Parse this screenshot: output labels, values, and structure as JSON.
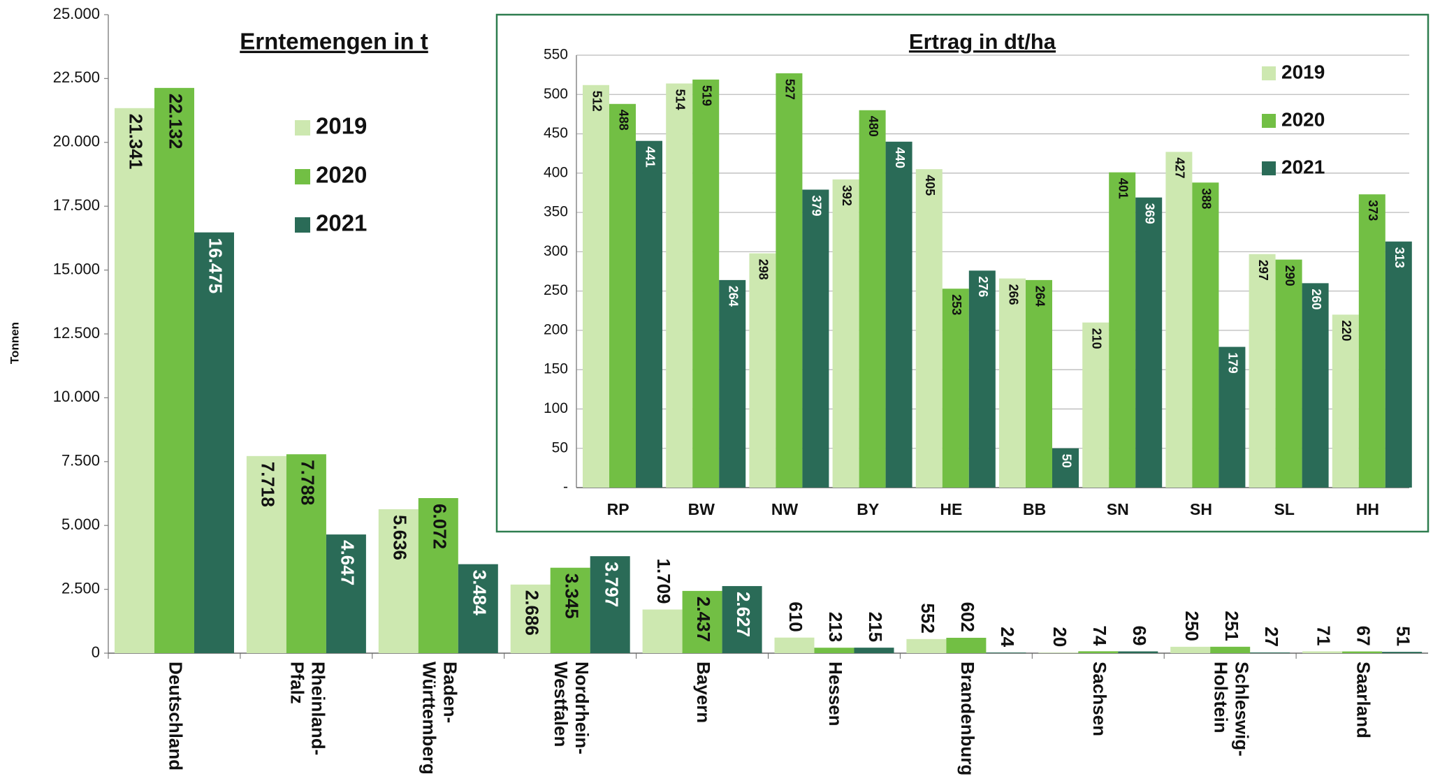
{
  "chart_data": [
    {
      "type": "bar",
      "title": "Erntemengen in t",
      "y_label": "Tonnen",
      "categories": [
        "Deutschland",
        "Rheinland-Pfalz",
        "Baden-Württemberg",
        "Nordrhein-Westfalen",
        "Bayern",
        "Hessen",
        "Brandenburg",
        "Sachsen",
        "Schleswig-Holstein",
        "Saarland"
      ],
      "series": [
        {
          "name": "2019",
          "color": "#cde8b0",
          "values": [
            21341,
            7718,
            5636,
            2686,
            1709,
            610,
            552,
            20,
            250,
            71
          ],
          "value_labels": [
            "21.341",
            "7.718",
            "5.636",
            "2.686",
            "1.709",
            "610",
            "552",
            "20",
            "250",
            "71"
          ]
        },
        {
          "name": "2020",
          "color": "#72bf44",
          "values": [
            22132,
            7788,
            6072,
            3345,
            2437,
            213,
            602,
            74,
            251,
            67
          ],
          "value_labels": [
            "22.132",
            "7.788",
            "6.072",
            "3.345",
            "2.437",
            "213",
            "602",
            "74",
            "251",
            "67"
          ]
        },
        {
          "name": "2021",
          "color": "#2a6b57",
          "values": [
            16475,
            4647,
            3484,
            3797,
            2627,
            215,
            24,
            69,
            27,
            51
          ],
          "value_labels": [
            "16.475",
            "4.647",
            "3.484",
            "3.797",
            "2.627",
            "215",
            "24",
            "69",
            "27",
            "51"
          ]
        }
      ],
      "ylim": [
        0,
        25000
      ],
      "yticks": [
        0,
        {
          "value": 2500,
          "label": "2.500"
        },
        {
          "value": 5000,
          "label": "5.000"
        },
        {
          "value": 7500,
          "label": "7.500"
        },
        {
          "value": 10000,
          "label": "10.000"
        },
        {
          "value": 12500,
          "label": "12.500"
        },
        {
          "value": 15000,
          "label": "15.000"
        },
        {
          "value": 17500,
          "label": "17.500"
        },
        {
          "value": 20000,
          "label": "20.000"
        },
        {
          "value": 22500,
          "label": "22.500"
        },
        {
          "value": 25000,
          "label": "25.000"
        }
      ],
      "grid": false
    },
    {
      "type": "bar",
      "title": "Ertrag in dt/ha",
      "categories": [
        "RP",
        "BW",
        "NW",
        "BY",
        "HE",
        "BB",
        "SN",
        "SH",
        "SL",
        "HH"
      ],
      "series": [
        {
          "name": "2019",
          "color": "#cde8b0",
          "values": [
            512,
            514,
            298,
            392,
            405,
            266,
            210,
            427,
            297,
            220
          ]
        },
        {
          "name": "2020",
          "color": "#72bf44",
          "values": [
            488,
            519,
            527,
            480,
            253,
            264,
            401,
            388,
            290,
            373
          ]
        },
        {
          "name": "2021",
          "color": "#2a6b57",
          "values": [
            441,
            264,
            379,
            440,
            276,
            50,
            369,
            179,
            260,
            313
          ]
        }
      ],
      "ylim": [
        0,
        550
      ],
      "yticks": [
        {
          "value": 0,
          "label": "-"
        },
        50,
        100,
        150,
        200,
        250,
        300,
        350,
        400,
        450,
        500,
        550
      ],
      "grid": true
    }
  ]
}
